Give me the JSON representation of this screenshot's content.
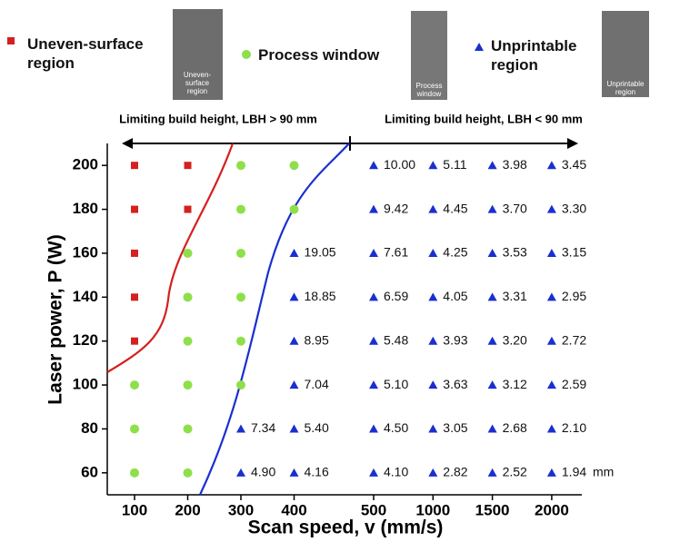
{
  "chart_data": {
    "type": "scatter",
    "x_label": "Scan speed, v (mm/s)",
    "y_label": "Laser power, P (W)",
    "categories": [
      "100",
      "200",
      "300",
      "400",
      "500",
      "1000",
      "1500",
      "2000"
    ],
    "ylim": [
      50,
      210
    ],
    "yticks": [
      60,
      80,
      100,
      120,
      140,
      160,
      180,
      200
    ],
    "series": [
      {
        "name": "Uneven-surface region",
        "color": "#d42020",
        "marker": "square",
        "x": [
          "100",
          "200",
          "100",
          "200",
          "100",
          "100",
          "100"
        ],
        "values": [
          200,
          200,
          180,
          180,
          160,
          140,
          120
        ]
      },
      {
        "name": "Process window",
        "color": "#8ee04a",
        "marker": "circle",
        "x": [
          "300",
          "400",
          "300",
          "400",
          "200",
          "300",
          "200",
          "300",
          "200",
          "300",
          "100",
          "200",
          "300",
          "100",
          "200",
          "100",
          "200"
        ],
        "values": [
          200,
          200,
          180,
          180,
          160,
          160,
          140,
          140,
          120,
          120,
          100,
          100,
          100,
          80,
          80,
          60,
          60
        ]
      },
      {
        "name": "Unprintable region",
        "color": "#1a2fd0",
        "marker": "triangle",
        "x": [
          "500",
          "1000",
          "1500",
          "2000",
          "500",
          "1000",
          "1500",
          "2000",
          "400",
          "500",
          "1000",
          "1500",
          "2000",
          "400",
          "500",
          "1000",
          "1500",
          "2000",
          "400",
          "500",
          "1000",
          "1500",
          "2000",
          "400",
          "500",
          "1000",
          "1500",
          "2000",
          "300",
          "400",
          "500",
          "1000",
          "1500",
          "2000",
          "300",
          "400",
          "500",
          "1000",
          "1500",
          "2000"
        ],
        "values": [
          200,
          200,
          200,
          200,
          180,
          180,
          180,
          180,
          160,
          160,
          160,
          160,
          160,
          140,
          140,
          140,
          140,
          140,
          120,
          120,
          120,
          120,
          120,
          100,
          100,
          100,
          100,
          100,
          80,
          80,
          80,
          80,
          80,
          80,
          60,
          60,
          60,
          60,
          60,
          60
        ],
        "value_labels": [
          "10.00",
          "5.11",
          "3.98",
          "3.45",
          "9.42",
          "4.45",
          "3.70",
          "3.30",
          "19.05",
          "7.61",
          "4.25",
          "3.53",
          "3.15",
          "18.85",
          "6.59",
          "4.05",
          "3.31",
          "2.95",
          "8.95",
          "5.48",
          "3.93",
          "3.20",
          "2.72",
          "7.04",
          "5.10",
          "3.63",
          "3.12",
          "2.59",
          "7.34",
          "5.40",
          "4.50",
          "3.05",
          "2.68",
          "2.10",
          "4.90",
          "4.16",
          "4.10",
          "2.82",
          "2.52",
          "1.94"
        ]
      }
    ],
    "unit_note": "mm",
    "annotations": [
      "Limiting build height, LBH > 90 mm",
      "Limiting build height, LBH < 90 mm"
    ],
    "image_captions": [
      "Uneven-surface region",
      "Process window",
      "Unprintable region"
    ]
  }
}
